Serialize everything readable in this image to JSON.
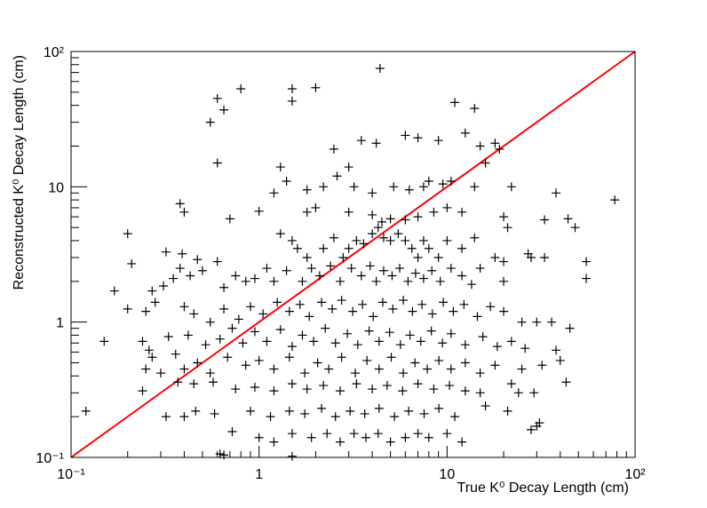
{
  "chart_data": {
    "type": "scatter",
    "xlabel": "True K⁰ Decay Length (cm)",
    "ylabel": "Reconstructed K⁰ Decay Length (cm)",
    "xscale": "log",
    "yscale": "log",
    "xlim": [
      0.1,
      100
    ],
    "ylim": [
      0.1,
      100
    ],
    "x_ticks": [
      {
        "value": 0.1,
        "label": "10⁻¹"
      },
      {
        "value": 1,
        "label": "1"
      },
      {
        "value": 10,
        "label": "10"
      },
      {
        "value": 100,
        "label": "10²"
      }
    ],
    "y_ticks": [
      {
        "value": 0.1,
        "label": "10⁻¹"
      },
      {
        "value": 1,
        "label": "1"
      },
      {
        "value": 10,
        "label": "10"
      },
      {
        "value": 100,
        "label": "10²"
      }
    ],
    "grid": false,
    "legend": "none",
    "marker": "+",
    "marker_color": "#000000",
    "reference_line": {
      "label": "",
      "color": "#ff0000",
      "from": [
        0.1,
        0.1
      ],
      "to": [
        100,
        100
      ]
    },
    "series": [
      {
        "points": [
          [
            4.4,
            75
          ],
          [
            0.8,
            53
          ],
          [
            1.5,
            53
          ],
          [
            2.0,
            54
          ],
          [
            1.5,
            43
          ],
          [
            0.6,
            45
          ],
          [
            0.65,
            37
          ],
          [
            0.55,
            30
          ],
          [
            11.0,
            42
          ],
          [
            14.0,
            38
          ],
          [
            6.0,
            24
          ],
          [
            7.0,
            23
          ],
          [
            9.0,
            22
          ],
          [
            12.5,
            25
          ],
          [
            15.0,
            20
          ],
          [
            18.0,
            21
          ],
          [
            19.0,
            19
          ],
          [
            16.0,
            15
          ],
          [
            3.5,
            22
          ],
          [
            4.2,
            21
          ],
          [
            2.5,
            19
          ],
          [
            3.0,
            14
          ],
          [
            1.3,
            14
          ],
          [
            0.6,
            15
          ],
          [
            1.4,
            11
          ],
          [
            1.2,
            9
          ],
          [
            1.8,
            9.5
          ],
          [
            2.2,
            10
          ],
          [
            2.6,
            12
          ],
          [
            3.2,
            10
          ],
          [
            4.0,
            9
          ],
          [
            5.2,
            10
          ],
          [
            6.3,
            9.5
          ],
          [
            7.5,
            10
          ],
          [
            8.0,
            11
          ],
          [
            9.5,
            10.5
          ],
          [
            10.5,
            11
          ],
          [
            14.0,
            10
          ],
          [
            22.0,
            10
          ],
          [
            38.0,
            9
          ],
          [
            78.0,
            8
          ],
          [
            0.38,
            7.5
          ],
          [
            0.4,
            6.5
          ],
          [
            1.0,
            6.6
          ],
          [
            0.7,
            5.8
          ],
          [
            1.8,
            6.5
          ],
          [
            2.0,
            7.0
          ],
          [
            3.0,
            6.5
          ],
          [
            4.0,
            6.2
          ],
          [
            4.5,
            5.5
          ],
          [
            5.0,
            5.8
          ],
          [
            6.0,
            5.7
          ],
          [
            7.0,
            6.0
          ],
          [
            8.5,
            6.5
          ],
          [
            10.0,
            7.0
          ],
          [
            12.0,
            6.5
          ],
          [
            20.0,
            6.0
          ],
          [
            21.0,
            5.0
          ],
          [
            33.0,
            5.7
          ],
          [
            44.0,
            5.8
          ],
          [
            48.0,
            5.0
          ],
          [
            0.2,
            4.5
          ],
          [
            0.21,
            2.7
          ],
          [
            0.32,
            3.3
          ],
          [
            0.39,
            3.2
          ],
          [
            0.47,
            2.9
          ],
          [
            0.38,
            2.5
          ],
          [
            0.6,
            2.8
          ],
          [
            1.3,
            4.5
          ],
          [
            1.5,
            4.0
          ],
          [
            1.6,
            3.5
          ],
          [
            1.8,
            3.0
          ],
          [
            2.2,
            3.5
          ],
          [
            2.5,
            4.2
          ],
          [
            2.8,
            3.0
          ],
          [
            3.0,
            3.5
          ],
          [
            3.3,
            4.0
          ],
          [
            3.6,
            3.8
          ],
          [
            4.0,
            4.5
          ],
          [
            4.3,
            5.0
          ],
          [
            4.6,
            4.2
          ],
          [
            5.0,
            4.0
          ],
          [
            5.5,
            4.5
          ],
          [
            6.0,
            4.0
          ],
          [
            6.5,
            3.5
          ],
          [
            7.0,
            3.0
          ],
          [
            7.5,
            4.0
          ],
          [
            8.0,
            3.5
          ],
          [
            9.0,
            3.0
          ],
          [
            10.0,
            4.0
          ],
          [
            12.0,
            3.5
          ],
          [
            14.0,
            4.2
          ],
          [
            18.0,
            3.0
          ],
          [
            20.0,
            2.8
          ],
          [
            27.0,
            3.2
          ],
          [
            28.0,
            3.0
          ],
          [
            33.0,
            3.0
          ],
          [
            55.0,
            2.8
          ],
          [
            55.0,
            2.1
          ],
          [
            0.17,
            1.7
          ],
          [
            0.27,
            1.7
          ],
          [
            0.31,
            1.85
          ],
          [
            0.35,
            2.1
          ],
          [
            0.43,
            2.2
          ],
          [
            0.5,
            2.4
          ],
          [
            0.65,
            1.8
          ],
          [
            0.75,
            2.2
          ],
          [
            0.85,
            2.0
          ],
          [
            0.95,
            2.1
          ],
          [
            1.1,
            2.5
          ],
          [
            1.2,
            2.0
          ],
          [
            1.4,
            2.4
          ],
          [
            1.7,
            2.0
          ],
          [
            1.9,
            2.5
          ],
          [
            2.1,
            2.2
          ],
          [
            2.4,
            2.6
          ],
          [
            2.7,
            2.0
          ],
          [
            3.1,
            2.5
          ],
          [
            3.5,
            2.2
          ],
          [
            3.9,
            2.6
          ],
          [
            4.2,
            2.0
          ],
          [
            4.6,
            2.4
          ],
          [
            5.1,
            2.2
          ],
          [
            5.6,
            2.5
          ],
          [
            6.2,
            2.0
          ],
          [
            6.8,
            2.3
          ],
          [
            7.5,
            2.1
          ],
          [
            8.3,
            2.4
          ],
          [
            9.2,
            2.0
          ],
          [
            10.5,
            2.5
          ],
          [
            12.0,
            2.2
          ],
          [
            13.5,
            1.9
          ],
          [
            15.0,
            2.5
          ],
          [
            20.0,
            2.0
          ],
          [
            0.2,
            1.25
          ],
          [
            0.25,
            1.2
          ],
          [
            0.28,
            1.4
          ],
          [
            0.4,
            1.3
          ],
          [
            0.45,
            1.15
          ],
          [
            0.55,
            1.0
          ],
          [
            0.65,
            1.25
          ],
          [
            0.78,
            1.05
          ],
          [
            0.9,
            1.3
          ],
          [
            1.05,
            1.15
          ],
          [
            1.25,
            1.4
          ],
          [
            1.45,
            1.2
          ],
          [
            1.65,
            1.35
          ],
          [
            1.85,
            1.1
          ],
          [
            2.15,
            1.4
          ],
          [
            2.45,
            1.25
          ],
          [
            2.75,
            1.45
          ],
          [
            3.15,
            1.2
          ],
          [
            3.55,
            1.35
          ],
          [
            4.05,
            1.1
          ],
          [
            4.55,
            1.4
          ],
          [
            5.15,
            1.25
          ],
          [
            5.85,
            1.45
          ],
          [
            6.55,
            1.2
          ],
          [
            7.35,
            1.35
          ],
          [
            8.35,
            1.15
          ],
          [
            9.55,
            1.4
          ],
          [
            10.8,
            1.2
          ],
          [
            12.3,
            1.35
          ],
          [
            14.5,
            1.1
          ],
          [
            17.0,
            1.3
          ],
          [
            20.0,
            1.2
          ],
          [
            25.0,
            1.0
          ],
          [
            30.0,
            1.0
          ],
          [
            36.0,
            1.0
          ],
          [
            45.0,
            0.9
          ],
          [
            0.15,
            0.72
          ],
          [
            0.24,
            0.72
          ],
          [
            0.26,
            0.62
          ],
          [
            0.33,
            0.78
          ],
          [
            0.42,
            0.8
          ],
          [
            0.52,
            0.68
          ],
          [
            0.62,
            0.75
          ],
          [
            0.72,
            0.9
          ],
          [
            0.82,
            0.7
          ],
          [
            0.95,
            0.85
          ],
          [
            1.1,
            0.72
          ],
          [
            1.3,
            0.88
          ],
          [
            1.5,
            0.66
          ],
          [
            1.7,
            0.8
          ],
          [
            1.95,
            0.72
          ],
          [
            2.25,
            0.9
          ],
          [
            2.55,
            0.7
          ],
          [
            2.95,
            0.82
          ],
          [
            3.35,
            0.68
          ],
          [
            3.85,
            0.86
          ],
          [
            4.35,
            0.72
          ],
          [
            4.95,
            0.84
          ],
          [
            5.65,
            0.68
          ],
          [
            6.35,
            0.8
          ],
          [
            7.25,
            0.72
          ],
          [
            8.25,
            0.86
          ],
          [
            9.45,
            0.7
          ],
          [
            10.5,
            0.82
          ],
          [
            12.5,
            0.68
          ],
          [
            15.5,
            0.78
          ],
          [
            18.5,
            0.66
          ],
          [
            22.0,
            0.72
          ],
          [
            26.0,
            0.64
          ],
          [
            0.25,
            0.45
          ],
          [
            0.27,
            0.55
          ],
          [
            0.3,
            0.42
          ],
          [
            0.36,
            0.58
          ],
          [
            0.4,
            0.45
          ],
          [
            0.47,
            0.5
          ],
          [
            0.55,
            0.42
          ],
          [
            0.68,
            0.55
          ],
          [
            0.85,
            0.48
          ],
          [
            1.0,
            0.52
          ],
          [
            1.2,
            0.45
          ],
          [
            1.45,
            0.55
          ],
          [
            1.75,
            0.42
          ],
          [
            2.05,
            0.5
          ],
          [
            2.35,
            0.45
          ],
          [
            2.75,
            0.55
          ],
          [
            3.25,
            0.42
          ],
          [
            3.75,
            0.52
          ],
          [
            4.35,
            0.45
          ],
          [
            5.05,
            0.55
          ],
          [
            5.85,
            0.42
          ],
          [
            6.75,
            0.5
          ],
          [
            7.85,
            0.45
          ],
          [
            9.05,
            0.52
          ],
          [
            10.5,
            0.45
          ],
          [
            12.5,
            0.5
          ],
          [
            15.0,
            0.42
          ],
          [
            18.0,
            0.48
          ],
          [
            25.0,
            0.45
          ],
          [
            32.0,
            0.48
          ],
          [
            38.0,
            0.62
          ],
          [
            40.0,
            0.52
          ],
          [
            0.24,
            0.31
          ],
          [
            0.37,
            0.36
          ],
          [
            0.45,
            0.35
          ],
          [
            0.57,
            0.36
          ],
          [
            0.75,
            0.32
          ],
          [
            0.95,
            0.33
          ],
          [
            1.2,
            0.31
          ],
          [
            1.5,
            0.35
          ],
          [
            1.8,
            0.32
          ],
          [
            2.2,
            0.34
          ],
          [
            2.7,
            0.31
          ],
          [
            3.3,
            0.35
          ],
          [
            4.0,
            0.32
          ],
          [
            4.8,
            0.34
          ],
          [
            5.8,
            0.31
          ],
          [
            7.0,
            0.35
          ],
          [
            8.5,
            0.32
          ],
          [
            10.3,
            0.34
          ],
          [
            12.5,
            0.31
          ],
          [
            15.0,
            0.3
          ],
          [
            22.0,
            0.35
          ],
          [
            24.0,
            0.3
          ],
          [
            29.0,
            0.3
          ],
          [
            43.0,
            0.36
          ],
          [
            0.12,
            0.22
          ],
          [
            0.32,
            0.2
          ],
          [
            0.4,
            0.2
          ],
          [
            0.46,
            0.22
          ],
          [
            0.58,
            0.21
          ],
          [
            0.9,
            0.22
          ],
          [
            1.15,
            0.2
          ],
          [
            1.45,
            0.22
          ],
          [
            1.75,
            0.21
          ],
          [
            2.15,
            0.23
          ],
          [
            2.55,
            0.2
          ],
          [
            3.05,
            0.22
          ],
          [
            3.65,
            0.21
          ],
          [
            4.35,
            0.23
          ],
          [
            5.25,
            0.2
          ],
          [
            6.25,
            0.22
          ],
          [
            7.55,
            0.21
          ],
          [
            9.05,
            0.23
          ],
          [
            11.0,
            0.2
          ],
          [
            16.0,
            0.24
          ],
          [
            21.0,
            0.22
          ],
          [
            30.0,
            0.17
          ],
          [
            28.0,
            0.16
          ],
          [
            31.0,
            0.18
          ],
          [
            0.72,
            0.155
          ],
          [
            1.0,
            0.14
          ],
          [
            1.2,
            0.13
          ],
          [
            1.5,
            0.15
          ],
          [
            1.9,
            0.14
          ],
          [
            2.3,
            0.15
          ],
          [
            2.7,
            0.13
          ],
          [
            3.2,
            0.15
          ],
          [
            3.7,
            0.14
          ],
          [
            4.3,
            0.15
          ],
          [
            5.0,
            0.13
          ],
          [
            6.0,
            0.14
          ],
          [
            7.0,
            0.15
          ],
          [
            8.0,
            0.14
          ],
          [
            10.0,
            0.15
          ],
          [
            12.0,
            0.13
          ],
          [
            0.62,
            0.106
          ],
          [
            0.65,
            0.104
          ],
          [
            1.5,
            0.102
          ]
        ]
      }
    ]
  }
}
